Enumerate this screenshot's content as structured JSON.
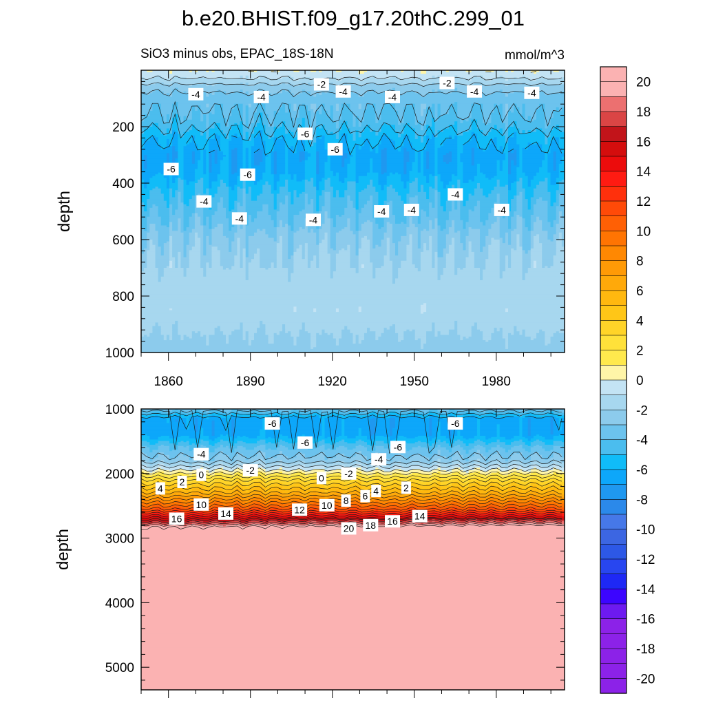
{
  "colors": {
    "colormap_negative": [
      "#8c22e8",
      "#6d1af0",
      "#3c05ff",
      "#1e28f5",
      "#2846f0",
      "#2d58e6",
      "#3c66e2",
      "#4678e8",
      "#2b89ea",
      "#1f98f0",
      "#0da7fa",
      "#10bcf8",
      "#4bbdee",
      "#6cc3ee",
      "#8ccbec",
      "#a7d7ef",
      "#c3e3f4"
    ],
    "zero_band": "#fff5a8",
    "colormap_positive": [
      "#ffe94d",
      "#ffe13a",
      "#ffd428",
      "#ffc617",
      "#ffb80f",
      "#ffa90a",
      "#ff9a06",
      "#ff8802",
      "#ff7402",
      "#ff6005",
      "#ff4a08",
      "#ff300c",
      "#ff1b12",
      "#ec0c0c",
      "#d40d0d",
      "#c2141a",
      "#da4545",
      "#ec7070",
      "#fbb2b2"
    ],
    "line": "#1a1a1a",
    "background": "#ffffff"
  },
  "chart_data": {
    "type": "heatmap",
    "title": "b.e20.BHIST.f09_g17.20thC.299_01",
    "subtitle_left": "SiO3 minus obs, EPAC_18S-18N",
    "subtitle_right": "mmol/m^3",
    "x": {
      "range": [
        1850,
        2005
      ],
      "tick_values": [
        1860,
        1890,
        1920,
        1950,
        1980
      ],
      "tick_labels": [
        "1860",
        "1890",
        "1920",
        "1950",
        "1980"
      ]
    },
    "panels": [
      {
        "name": "upper",
        "ylabel": "depth",
        "y_range": [
          0,
          1000
        ],
        "y_reversed": true,
        "y_tick_values": [
          200,
          400,
          600,
          800,
          1000
        ],
        "y_tick_labels": [
          "200",
          "400",
          "600",
          "800",
          "1000"
        ],
        "depth_profile": [
          [
            0,
            0
          ],
          [
            30,
            -1
          ],
          [
            60,
            -2.5
          ],
          [
            100,
            -3.5
          ],
          [
            180,
            -4.2
          ],
          [
            240,
            -5.6
          ],
          [
            300,
            -6.5
          ],
          [
            360,
            -6.2
          ],
          [
            420,
            -5
          ],
          [
            480,
            -4.2
          ],
          [
            540,
            -3.5
          ],
          [
            600,
            -2.5
          ],
          [
            700,
            -1.8
          ],
          [
            850,
            -1.3
          ],
          [
            1000,
            -2.5
          ]
        ],
        "contour_labels": [
          {
            "x": 1870,
            "y": 85,
            "text": "-4"
          },
          {
            "x": 1894,
            "y": 95,
            "text": "-4"
          },
          {
            "x": 1916,
            "y": 50,
            "text": "-2"
          },
          {
            "x": 1924,
            "y": 75,
            "text": "-4"
          },
          {
            "x": 1942,
            "y": 95,
            "text": "-4"
          },
          {
            "x": 1962,
            "y": 45,
            "text": "-2"
          },
          {
            "x": 1972,
            "y": 75,
            "text": "-4"
          },
          {
            "x": 1993,
            "y": 80,
            "text": "-4"
          },
          {
            "x": 1910,
            "y": 225,
            "text": "-6"
          },
          {
            "x": 1921,
            "y": 280,
            "text": "-6"
          },
          {
            "x": 1861,
            "y": 350,
            "text": "-6"
          },
          {
            "x": 1889,
            "y": 370,
            "text": "-6"
          },
          {
            "x": 1873,
            "y": 465,
            "text": "-4"
          },
          {
            "x": 1886,
            "y": 525,
            "text": "-4"
          },
          {
            "x": 1913,
            "y": 530,
            "text": "-4"
          },
          {
            "x": 1938,
            "y": 500,
            "text": "-4"
          },
          {
            "x": 1949,
            "y": 495,
            "text": "-4"
          },
          {
            "x": 1965,
            "y": 440,
            "text": "-4"
          },
          {
            "x": 1982,
            "y": 495,
            "text": "-4"
          }
        ]
      },
      {
        "name": "lower",
        "ylabel": "depth",
        "y_range": [
          1000,
          5350
        ],
        "y_reversed": true,
        "y_tick_values": [
          1000,
          2000,
          3000,
          4000,
          5000
        ],
        "y_tick_labels": [
          "1000",
          "2000",
          "3000",
          "4000",
          "5000"
        ],
        "depth_profile": [
          [
            1000,
            -3.5
          ],
          [
            1150,
            -6.5
          ],
          [
            1400,
            -6.5
          ],
          [
            1600,
            -4
          ],
          [
            1800,
            -2.5
          ],
          [
            1950,
            0
          ],
          [
            2100,
            3
          ],
          [
            2300,
            6
          ],
          [
            2450,
            9
          ],
          [
            2550,
            11
          ],
          [
            2650,
            14
          ],
          [
            2750,
            17
          ],
          [
            2830,
            20
          ],
          [
            5350,
            20
          ]
        ],
        "contour_labels": [
          {
            "x": 1898,
            "y": 1225,
            "text": "-6"
          },
          {
            "x": 1910,
            "y": 1520,
            "text": "-6"
          },
          {
            "x": 1944,
            "y": 1590,
            "text": "-6"
          },
          {
            "x": 1965,
            "y": 1225,
            "text": "-6"
          },
          {
            "x": 1872,
            "y": 1700,
            "text": "-4"
          },
          {
            "x": 1937,
            "y": 1780,
            "text": "-4"
          },
          {
            "x": 1890,
            "y": 1950,
            "text": "-2"
          },
          {
            "x": 1926,
            "y": 2000,
            "text": "-2"
          },
          {
            "x": 1872,
            "y": 2020,
            "text": "0"
          },
          {
            "x": 1916,
            "y": 2070,
            "text": "0"
          },
          {
            "x": 1865,
            "y": 2130,
            "text": "2"
          },
          {
            "x": 1947,
            "y": 2220,
            "text": "2"
          },
          {
            "x": 1857,
            "y": 2230,
            "text": "4"
          },
          {
            "x": 1936,
            "y": 2270,
            "text": "4"
          },
          {
            "x": 1932,
            "y": 2350,
            "text": "6"
          },
          {
            "x": 1925,
            "y": 2420,
            "text": "8"
          },
          {
            "x": 1872,
            "y": 2480,
            "text": "10"
          },
          {
            "x": 1918,
            "y": 2490,
            "text": "10"
          },
          {
            "x": 1908,
            "y": 2560,
            "text": "12"
          },
          {
            "x": 1881,
            "y": 2620,
            "text": "14"
          },
          {
            "x": 1952,
            "y": 2660,
            "text": "14"
          },
          {
            "x": 1863,
            "y": 2700,
            "text": "16"
          },
          {
            "x": 1942,
            "y": 2740,
            "text": "16"
          },
          {
            "x": 1934,
            "y": 2800,
            "text": "18"
          },
          {
            "x": 1926,
            "y": 2850,
            "text": "20"
          }
        ]
      }
    ],
    "colorbar": {
      "min": -21,
      "max": 21,
      "interval": 1,
      "label_values": [
        20,
        18,
        16,
        14,
        12,
        10,
        8,
        6,
        4,
        2,
        0,
        -2,
        -4,
        -6,
        -8,
        -10,
        -12,
        -14,
        -16,
        -18,
        -20
      ],
      "labels": [
        "20",
        "18",
        "16",
        "14",
        "12",
        "10",
        "8",
        "6",
        "4",
        "2",
        "0",
        "-2",
        "-4",
        "-6",
        "-8",
        "-10",
        "-12",
        "-14",
        "-16",
        "-18",
        "-20"
      ]
    }
  }
}
